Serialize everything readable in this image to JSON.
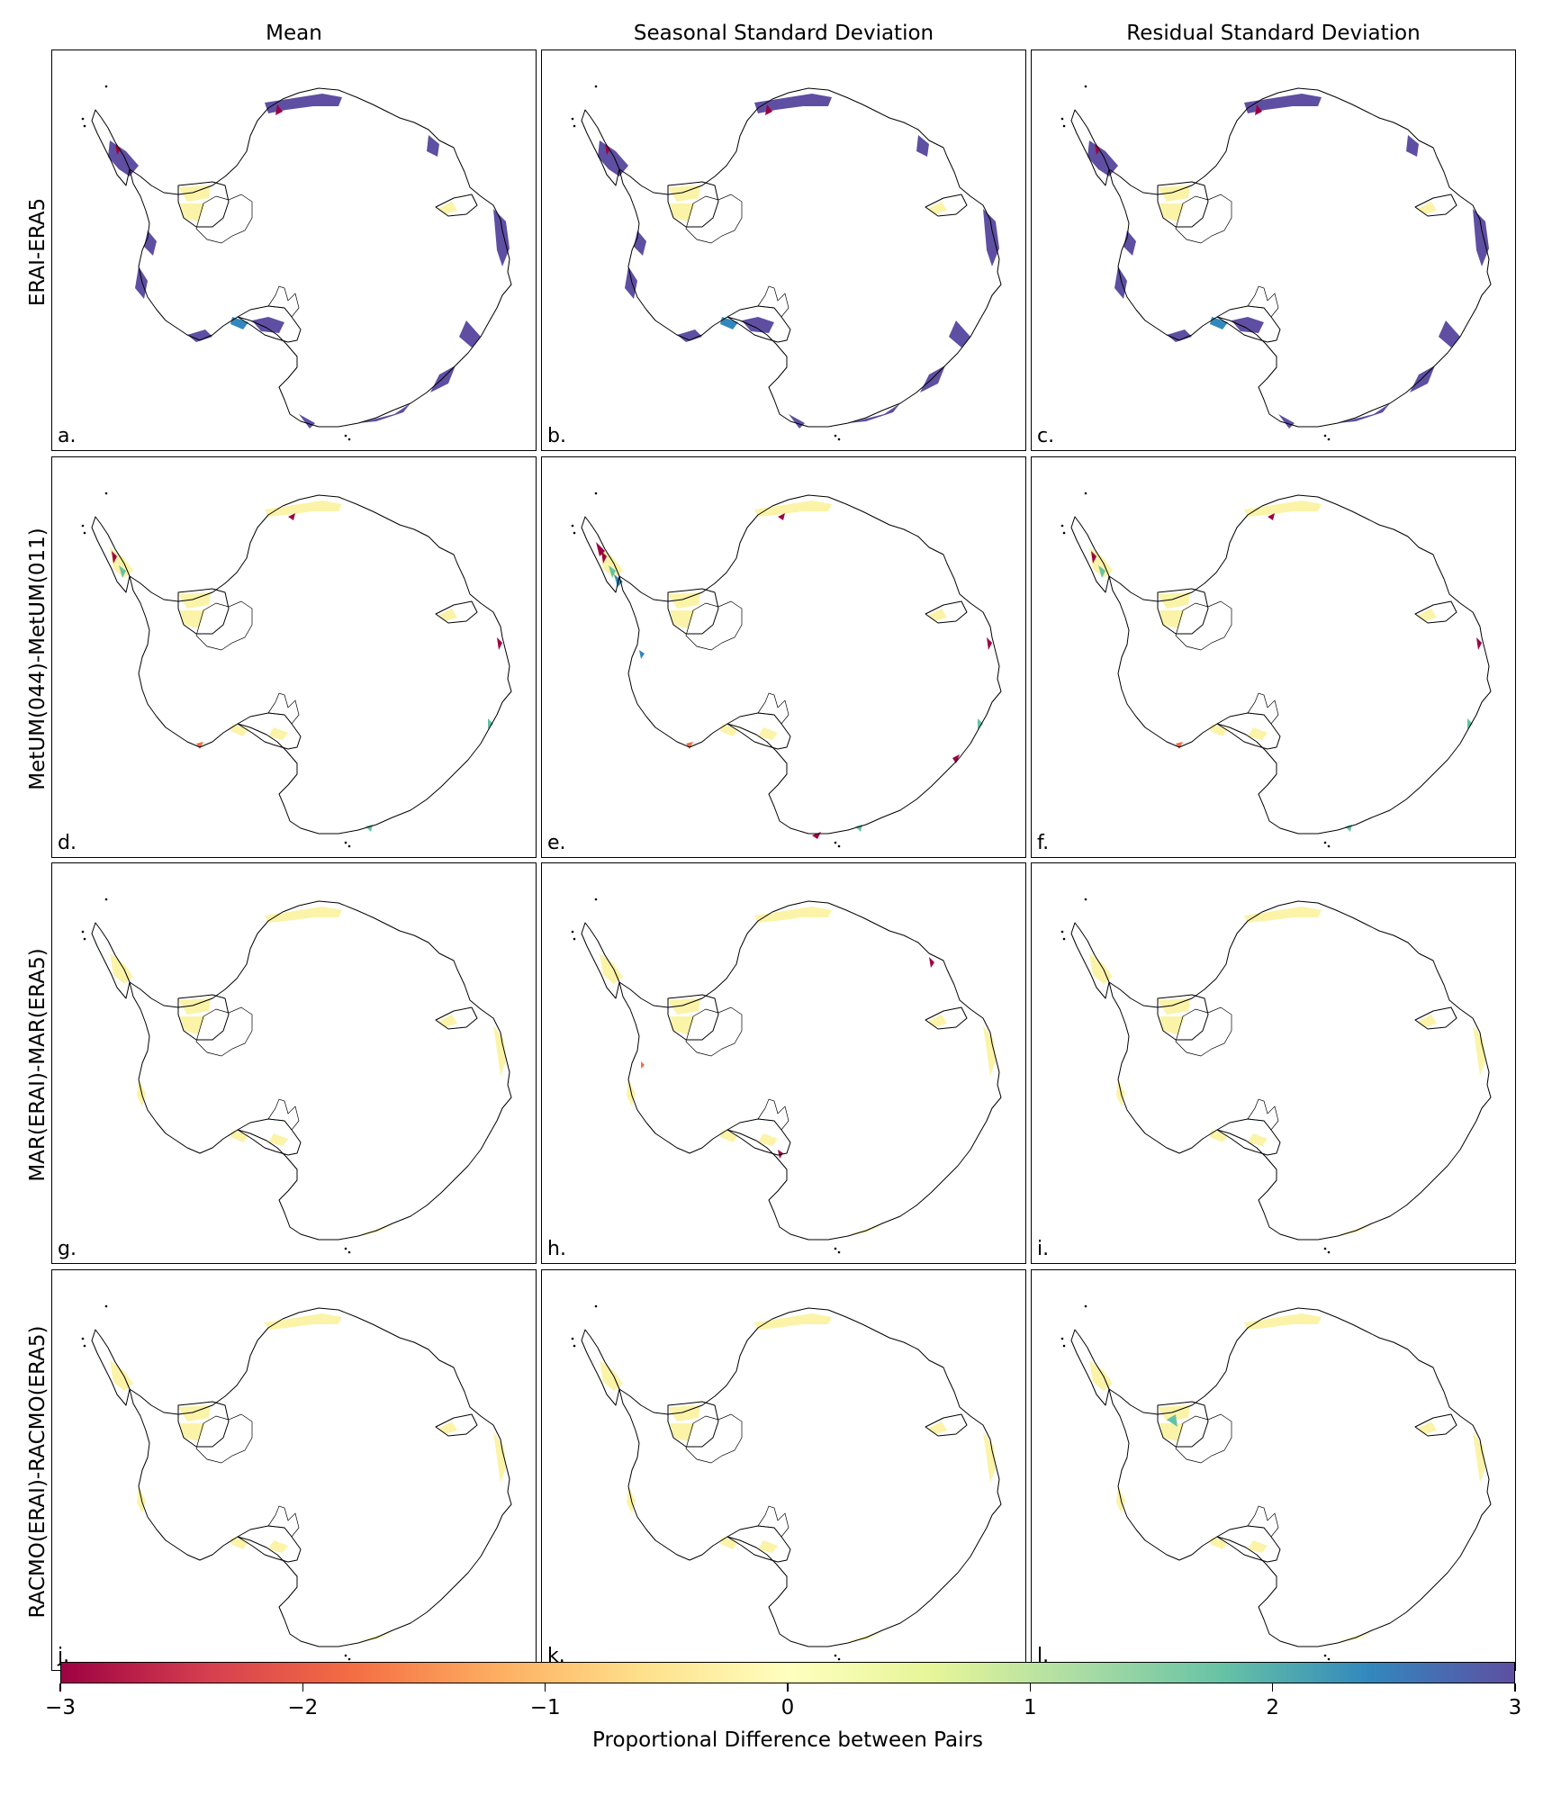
{
  "columns": [
    "Mean",
    "Seasonal Standard Deviation",
    "Residual Standard Deviation"
  ],
  "rows": [
    "ERAI-ERA5",
    "MetUM(044)-MetUM(011)",
    "MAR(ERAI)-MAR(ERA5)",
    "RACMO(ERAI)-RACMO(ERA5)"
  ],
  "panels": [
    {
      "letter": "a.",
      "style": "strong-positive"
    },
    {
      "letter": "b.",
      "style": "strong-positive"
    },
    {
      "letter": "c.",
      "style": "strong-positive"
    },
    {
      "letter": "d.",
      "style": "mixed"
    },
    {
      "letter": "e.",
      "style": "mixed-strong"
    },
    {
      "letter": "f.",
      "style": "mixed"
    },
    {
      "letter": "g.",
      "style": "near-zero"
    },
    {
      "letter": "h.",
      "style": "near-zero-spots"
    },
    {
      "letter": "i.",
      "style": "near-zero"
    },
    {
      "letter": "j.",
      "style": "near-zero"
    },
    {
      "letter": "k.",
      "style": "near-zero"
    },
    {
      "letter": "l.",
      "style": "near-zero-green"
    }
  ],
  "colorbar": {
    "label": "Proportional Difference between Pairs",
    "min": -3,
    "max": 3,
    "ticks": [
      "−3",
      "−2",
      "−1",
      "0",
      "1",
      "2",
      "3"
    ],
    "colormap": "Spectral",
    "colors": [
      "#9e0142",
      "#d53e4f",
      "#f46d43",
      "#fdae61",
      "#fee08b",
      "#ffffbf",
      "#e6f598",
      "#abdda4",
      "#66c2a5",
      "#3288bd",
      "#5e4fa2"
    ]
  },
  "shelf_colors": {
    "near_zero": "#fbf3a8",
    "deep_negative": "#9e0142",
    "negative": "#f46d43",
    "positive": "#66c2a5",
    "strong_positive": "#5e4fa2",
    "mid_blue": "#3288bd"
  }
}
